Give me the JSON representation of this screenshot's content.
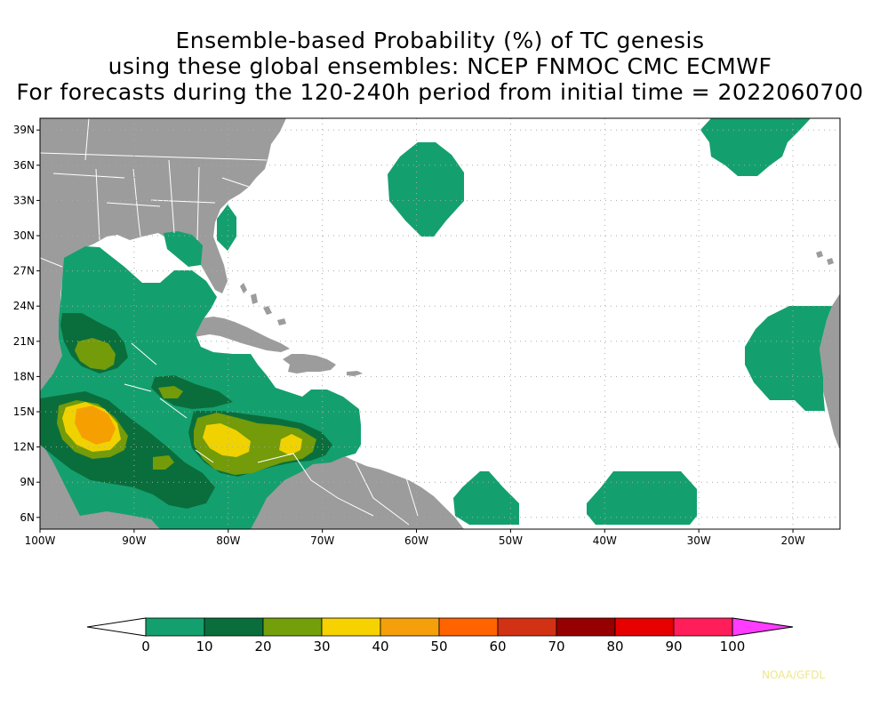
{
  "title": {
    "line1": "Ensemble-based Probability (%) of TC genesis",
    "line2": "using these global ensembles:   NCEP FNMOC CMC ECMWF",
    "line3": "For forecasts during the 120-240h period from initial time = 2022060700"
  },
  "map": {
    "lon_range": [
      -100,
      -15
    ],
    "lat_range": [
      5,
      40
    ],
    "lat_ticks": [
      {
        "value": 39,
        "label": "39N"
      },
      {
        "value": 36,
        "label": "36N"
      },
      {
        "value": 33,
        "label": "33N"
      },
      {
        "value": 30,
        "label": "30N"
      },
      {
        "value": 27,
        "label": "27N"
      },
      {
        "value": 24,
        "label": "24N"
      },
      {
        "value": 21,
        "label": "21N"
      },
      {
        "value": 18,
        "label": "18N"
      },
      {
        "value": 15,
        "label": "15N"
      },
      {
        "value": 12,
        "label": "12N"
      },
      {
        "value": 9,
        "label": "9N"
      },
      {
        "value": 6,
        "label": "6N"
      }
    ],
    "lon_ticks": [
      {
        "value": -100,
        "label": "100W"
      },
      {
        "value": -90,
        "label": "90W"
      },
      {
        "value": -80,
        "label": "80W"
      },
      {
        "value": -70,
        "label": "70W"
      },
      {
        "value": -60,
        "label": "60W"
      },
      {
        "value": -50,
        "label": "50W"
      },
      {
        "value": -40,
        "label": "40W"
      },
      {
        "value": -30,
        "label": "30W"
      },
      {
        "value": -20,
        "label": "20W"
      }
    ],
    "colors": {
      "land": "#9c9c9c",
      "ocean": "#ffffff",
      "grid": "#aaaaaa",
      "p0_10": "#14a06e",
      "p10_20": "#0a6e3c",
      "p20_30": "#739b0a",
      "p30_40": "#f0d200",
      "p40_50": "#f5a000"
    }
  },
  "colorbar": {
    "bins": [
      {
        "from": 0,
        "to": 10,
        "color": "#14a06e"
      },
      {
        "from": 10,
        "to": 20,
        "color": "#0a6e3c"
      },
      {
        "from": 20,
        "to": 30,
        "color": "#73a00a"
      },
      {
        "from": 30,
        "to": 40,
        "color": "#f5d200"
      },
      {
        "from": 40,
        "to": 50,
        "color": "#f5a00a"
      },
      {
        "from": 50,
        "to": 60,
        "color": "#ff6400"
      },
      {
        "from": 60,
        "to": 70,
        "color": "#d23214"
      },
      {
        "from": 70,
        "to": 80,
        "color": "#960000"
      },
      {
        "from": 80,
        "to": 90,
        "color": "#e60000"
      },
      {
        "from": 90,
        "to": 100,
        "color": "#ff1e5a"
      }
    ],
    "low_color": "#ffffff",
    "high_color": "#ff3cff",
    "labels": [
      "0",
      "10",
      "20",
      "30",
      "40",
      "50",
      "60",
      "70",
      "80",
      "90",
      "100"
    ]
  },
  "credit": "NOAA/GFDL"
}
